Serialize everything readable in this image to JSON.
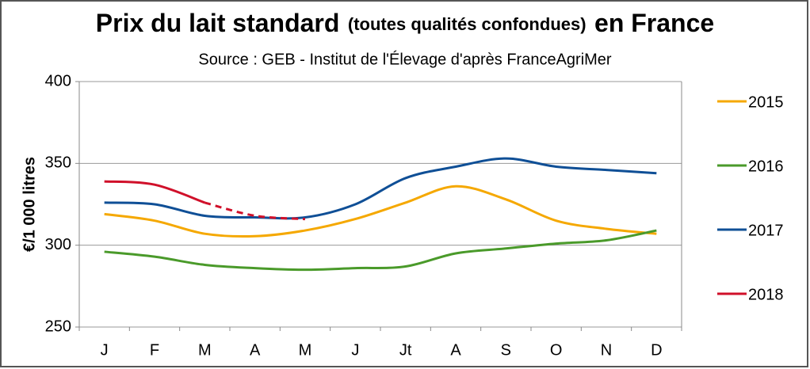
{
  "chart_data": {
    "type": "line",
    "title_parts": [
      "Prix du lait standard",
      "(toutes qualités confondues)",
      "en France"
    ],
    "subtitle": "Source : GEB - Institut de l'Élevage d'après FranceAgriMer",
    "y_label": "€/1 000 litres",
    "categories": [
      "J",
      "F",
      "M",
      "A",
      "M",
      "J",
      "Jt",
      "A",
      "S",
      "O",
      "N",
      "D"
    ],
    "ylim": [
      250,
      400
    ],
    "yticks": [
      250,
      300,
      350,
      400
    ],
    "grid": true,
    "legend": "right",
    "series": [
      {
        "name": "2015",
        "color": "#f5a800",
        "values": [
          319,
          315,
          307,
          305.5,
          309,
          316,
          326,
          336,
          328,
          315,
          310,
          307
        ]
      },
      {
        "name": "2016",
        "color": "#4a9a2a",
        "values": [
          296,
          293,
          288,
          286,
          285,
          286,
          287,
          295,
          298,
          301,
          303,
          309
        ]
      },
      {
        "name": "2017",
        "color": "#0f4f96",
        "values": [
          326,
          325,
          318,
          317,
          317,
          325,
          341,
          348,
          353,
          348,
          346,
          344
        ]
      },
      {
        "name": "2018",
        "color": "#d0102a",
        "values": [
          339,
          337,
          326,
          318,
          316,
          null,
          null,
          null,
          null,
          null,
          null,
          null
        ],
        "dashed_from_index": 2
      }
    ]
  }
}
